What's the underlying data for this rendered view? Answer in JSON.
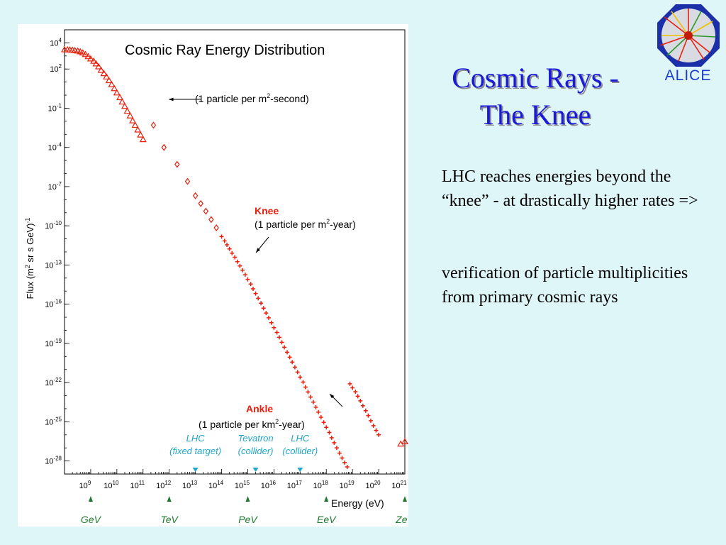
{
  "slide": {
    "title_line1": "Cosmic Rays -",
    "title_line2": "The Knee",
    "paragraph1": "LHC reaches energies beyond the “knee” - at drastically higher rates =>",
    "paragraph2": "verification of particle multiplicities from primary cosmic rays",
    "logo_text": "ALICE"
  },
  "colors": {
    "background": "#dff6f8",
    "title": "#1a1adb",
    "data": "#e8200c",
    "accelerator": "#1fa6c9",
    "unit_marker": "#1f7a2e",
    "annotation_red": "#e8200c"
  },
  "chart_data": {
    "type": "scatter",
    "title": "Cosmic Ray Energy Distribution",
    "xlabel": "Energy (eV)",
    "ylabel_parts": {
      "base": "Flux (m",
      "sup1": "2",
      "mid": " sr s GeV)",
      "sup2": "-1"
    },
    "x_scale": "log",
    "y_scale": "log",
    "xlim": [
      100000000.0,
      1e+21
    ],
    "ylim": [
      1e-29,
      100000.0
    ],
    "x_ticks": [
      {
        "value": 1000000000.0,
        "base": "10",
        "exp": "9"
      },
      {
        "value": 10000000000.0,
        "base": "10",
        "exp": "10"
      },
      {
        "value": 100000000000.0,
        "base": "10",
        "exp": "11"
      },
      {
        "value": 1000000000000.0,
        "base": "10",
        "exp": "12"
      },
      {
        "value": 10000000000000.0,
        "base": "10",
        "exp": "13"
      },
      {
        "value": 100000000000000.0,
        "base": "10",
        "exp": "14"
      },
      {
        "value": 1000000000000000.0,
        "base": "10",
        "exp": "15"
      },
      {
        "value": 1e+16,
        "base": "10",
        "exp": "16"
      },
      {
        "value": 1e+17,
        "base": "10",
        "exp": "17"
      },
      {
        "value": 1e+18,
        "base": "10",
        "exp": "18"
      },
      {
        "value": 1e+19,
        "base": "10",
        "exp": "19"
      },
      {
        "value": 1e+20,
        "base": "10",
        "exp": "20"
      },
      {
        "value": 1e+21,
        "base": "10",
        "exp": "21"
      }
    ],
    "y_ticks": [
      {
        "value": 10000.0,
        "base": "10",
        "exp": "4"
      },
      {
        "value": 100.0,
        "base": "10",
        "exp": "2"
      },
      {
        "value": 0.1,
        "base": "10",
        "exp": "-1"
      },
      {
        "value": 0.0001,
        "base": "10",
        "exp": "-4"
      },
      {
        "value": 1e-07,
        "base": "10",
        "exp": "-7"
      },
      {
        "value": 1e-10,
        "base": "10",
        "exp": "-10"
      },
      {
        "value": 1e-13,
        "base": "10",
        "exp": "-13"
      },
      {
        "value": 1e-16,
        "base": "10",
        "exp": "-16"
      },
      {
        "value": 1e-19,
        "base": "10",
        "exp": "-19"
      },
      {
        "value": 1e-22,
        "base": "10",
        "exp": "-22"
      },
      {
        "value": 1e-25,
        "base": "10",
        "exp": "-25"
      },
      {
        "value": 1e-28,
        "base": "10",
        "exp": "-28"
      }
    ],
    "series": [
      {
        "marker": "triangle",
        "points": [
          [
            100000000.0,
            3000.0
          ],
          [
            130000000.0,
            3000.0
          ],
          [
            160000000.0,
            2900.0
          ],
          [
            200000000.0,
            2800.0
          ],
          [
            250000000.0,
            2600.0
          ],
          [
            320000000.0,
            2400.0
          ],
          [
            400000000.0,
            2100.0
          ],
          [
            500000000.0,
            1700.0
          ],
          [
            630000000.0,
            1300.0
          ],
          [
            800000000.0,
            900.0
          ],
          [
            1000000000.0,
            600.0
          ],
          [
            1300000000.0,
            400.0
          ],
          [
            1600000000.0,
            250.0
          ],
          [
            2000000000.0,
            150.0
          ],
          [
            2500000000.0,
            80.0
          ],
          [
            3200000000.0,
            45.0
          ],
          [
            4000000000.0,
            25.0
          ],
          [
            5000000000.0,
            13.0
          ],
          [
            6300000000.0,
            6.5
          ],
          [
            8000000000.0,
            3.2
          ],
          [
            10000000000.0,
            1.5
          ],
          [
            13000000000.0,
            0.65
          ],
          [
            16000000000.0,
            0.3
          ],
          [
            20000000000.0,
            0.14
          ],
          [
            25000000000.0,
            0.06
          ],
          [
            32000000000.0,
            0.026
          ],
          [
            40000000000.0,
            0.011
          ],
          [
            50000000000.0,
            0.005
          ],
          [
            63000000000.0,
            0.0022
          ],
          [
            80000000000.0,
            0.0009
          ],
          [
            100000000000.0,
            0.0004
          ],
          [
            1e+21,
            3e-27
          ],
          [
            7e+20,
            2e-27
          ]
        ]
      },
      {
        "marker": "diamond",
        "points": [
          [
            250000000000.0,
            0.005
          ],
          [
            630000000000.0,
            0.0001
          ],
          [
            2000000000000.0,
            5e-06
          ],
          [
            5000000000000.0,
            2.5e-07
          ],
          [
            10000000000000.0,
            2e-08
          ],
          [
            16000000000000.0,
            5e-09
          ],
          [
            25000000000000.0,
            1.3e-09
          ],
          [
            40000000000000.0,
            3e-10
          ],
          [
            63000000000000.0,
            7e-11
          ]
        ]
      },
      {
        "marker": "cross",
        "points": [
          [
            100000000000000.0,
            1.5e-11
          ],
          [
            130000000000000.0,
            7e-12
          ],
          [
            160000000000000.0,
            3.5e-12
          ],
          [
            200000000000000.0,
            1.7e-12
          ],
          [
            250000000000000.0,
            8e-13
          ],
          [
            320000000000000.0,
            3.9e-13
          ],
          [
            400000000000000.0,
            1.8e-13
          ],
          [
            500000000000000.0,
            8.5e-14
          ],
          [
            630000000000000.0,
            4e-14
          ],
          [
            800000000000000.0,
            1.8e-14
          ],
          [
            1000000000000000.0,
            8e-15
          ],
          [
            1300000000000000.0,
            3.5e-15
          ],
          [
            1600000000000000.0,
            1.5e-15
          ],
          [
            2000000000000000.0,
            6.5e-16
          ],
          [
            2500000000000000.0,
            2.8e-16
          ],
          [
            3200000000000000.0,
            1.2e-16
          ],
          [
            4000000000000000.0,
            5e-17
          ],
          [
            5000000000000000.0,
            2.1e-17
          ],
          [
            6300000000000000.0,
            9e-18
          ],
          [
            8000000000000000.0,
            3.8e-18
          ],
          [
            1e+16,
            1.6e-18
          ],
          [
            1.3e+16,
            6.8e-19
          ],
          [
            1.6e+16,
            2.9e-19
          ],
          [
            2e+16,
            1.2e-19
          ],
          [
            2.5e+16,
            5e-20
          ],
          [
            3.2e+16,
            2.1e-20
          ],
          [
            4e+16,
            8.8e-21
          ],
          [
            5e+16,
            3.7e-21
          ],
          [
            6.3e+16,
            1.5e-21
          ],
          [
            8e+16,
            6.3e-22
          ],
          [
            1e+17,
            2.6e-22
          ],
          [
            1.3e+17,
            1.1e-22
          ],
          [
            1.6e+17,
            4.5e-23
          ],
          [
            2e+17,
            1.9e-23
          ],
          [
            2.5e+17,
            7.8e-24
          ],
          [
            3.2e+17,
            3.2e-24
          ],
          [
            4e+17,
            1.3e-24
          ],
          [
            5e+17,
            5.5e-25
          ],
          [
            6.3e+17,
            2.2e-25
          ],
          [
            8e+17,
            9e-26
          ],
          [
            1e+18,
            3.7e-26
          ],
          [
            1.3e+18,
            1.5e-26
          ],
          [
            1.6e+18,
            6e-27
          ],
          [
            2e+18,
            2.5e-27
          ],
          [
            2.5e+18,
            1e-27
          ],
          [
            3.2e+18,
            4e-28
          ],
          [
            4e+18,
            1.7e-28
          ],
          [
            5e+18,
            7.5e-29
          ],
          [
            6.3e+18,
            3.5e-29
          ],
          [
            8e+18,
            8e-23
          ],
          [
            1e+19,
            4e-23
          ],
          [
            1.3e+19,
            2e-23
          ],
          [
            1.6e+19,
            9e-24
          ],
          [
            2e+19,
            4e-24
          ],
          [
            2.5e+19,
            1.7e-24
          ],
          [
            3.2e+19,
            7e-25
          ],
          [
            4e+19,
            3e-25
          ],
          [
            5e+19,
            1.2e-25
          ],
          [
            6.3e+19,
            5e-26
          ],
          [
            8e+19,
            2.2e-26
          ],
          [
            1e+20,
            1e-26
          ]
        ]
      }
    ],
    "annotations": [
      {
        "id": "one-per-m2-second",
        "text_main": "(1 particle per m",
        "text_sup": "2",
        "text_end": "-second)",
        "x": 100000000000.0,
        "y": 0.1
      },
      {
        "id": "knee",
        "label": "Knee",
        "text_main": "(1 particle per m",
        "text_sup": "2",
        "text_end": "-year)",
        "x": 3000000000000000.0,
        "y": 1e-12
      },
      {
        "id": "ankle",
        "label": "Ankle",
        "text_main": "(1 particle per km",
        "text_sup": "2",
        "text_end": "-year)",
        "x": 5e+18,
        "y": 1e-21
      }
    ],
    "accelerators": [
      {
        "line1": "LHC",
        "line2": "(fixed target)",
        "x": 10000000000000.0
      },
      {
        "line1": "Tevatron",
        "line2": "(collider)",
        "x": 2000000000000000.0
      },
      {
        "line1": "LHC",
        "line2": "(collider)",
        "x": 1e+17
      }
    ],
    "energy_units": [
      {
        "label": "GeV",
        "x": 1000000000.0
      },
      {
        "label": "TeV",
        "x": 1000000000000.0
      },
      {
        "label": "PeV",
        "x": 1000000000000000.0
      },
      {
        "label": "EeV",
        "x": 1e+18
      },
      {
        "label": "ZeV",
        "x": 1e+21
      }
    ]
  }
}
